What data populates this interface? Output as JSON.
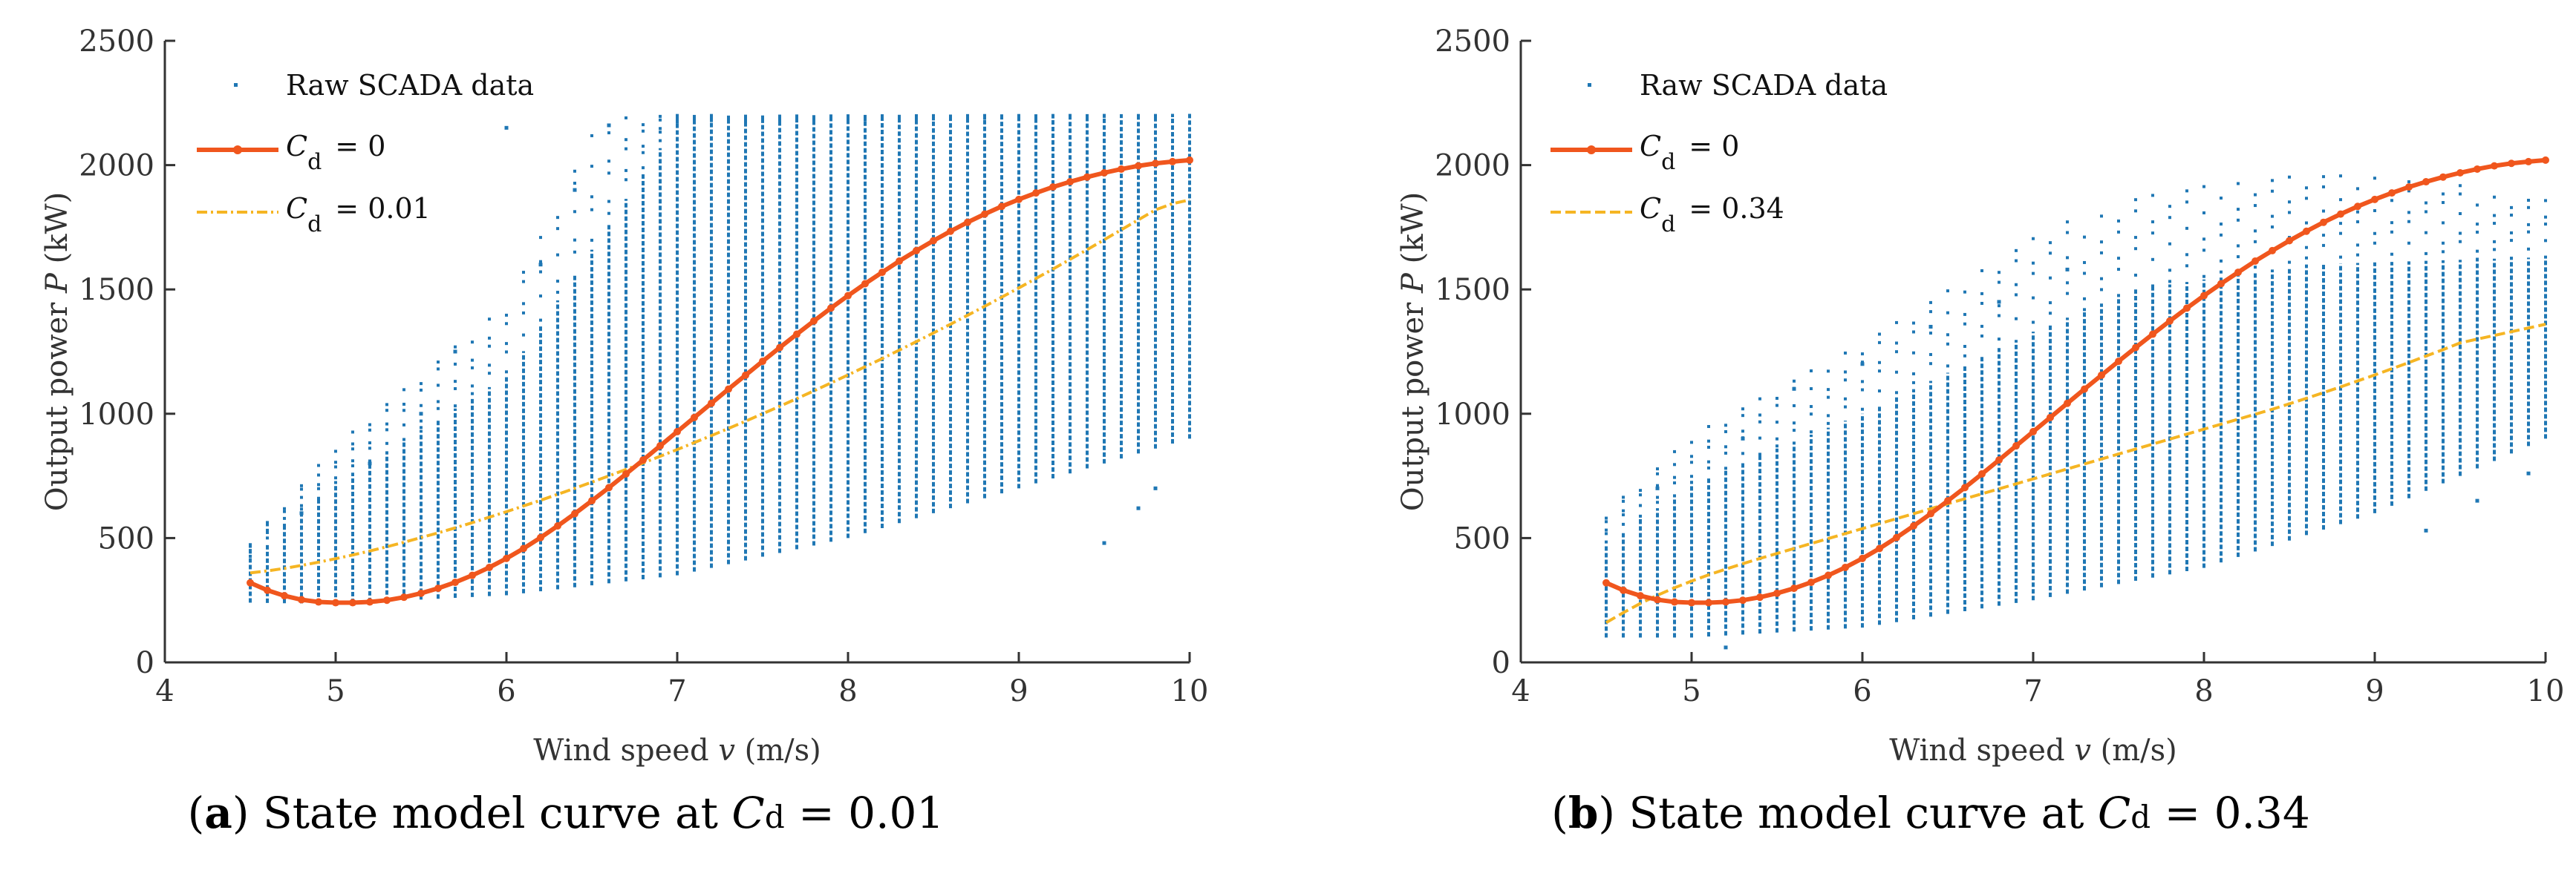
{
  "chart_data": [
    {
      "type": "scatter",
      "panel_label": "a",
      "caption_text": "State model curve at",
      "caption_symbol": "C",
      "caption_sub": "d",
      "caption_value": "= 0.01",
      "xlabel": "Wind speed",
      "xlabel_var": "v",
      "xlabel_unit": "(m/s)",
      "ylabel": "Output power",
      "ylabel_var": "P",
      "ylabel_unit": "(kW)",
      "xlim": [
        4,
        10
      ],
      "ylim": [
        0,
        2500
      ],
      "xticks": [
        "4",
        "5",
        "6",
        "7",
        "8",
        "9",
        "10"
      ],
      "yticks": [
        "0",
        "500",
        "1000",
        "1500",
        "2000",
        "2500"
      ],
      "grid": false,
      "legend_position": "top-left",
      "scatter": {
        "name": "Raw SCADA data",
        "color": "#1f77b4",
        "x_range": [
          4.5,
          10
        ],
        "x_step": 0.1,
        "lower": [
          [
            4.5,
            240
          ],
          [
            5.0,
            235
          ],
          [
            6.0,
            270
          ],
          [
            7.0,
            350
          ],
          [
            8.0,
            500
          ],
          [
            9.0,
            700
          ],
          [
            10.0,
            900
          ]
        ],
        "upper": [
          [
            4.5,
            420
          ],
          [
            5.0,
            720
          ],
          [
            6.0,
            1150
          ],
          [
            7.0,
            2170
          ],
          [
            10.0,
            2200
          ]
        ],
        "outliers": [
          [
            4.8,
            600
          ],
          [
            5.2,
            800
          ],
          [
            5.5,
            1000
          ],
          [
            5.7,
            1250
          ],
          [
            6.2,
            1600
          ],
          [
            6.4,
            1900
          ],
          [
            6.6,
            2160
          ],
          [
            6.0,
            2150
          ],
          [
            9.7,
            620
          ],
          [
            9.5,
            480
          ],
          [
            9.8,
            700
          ]
        ]
      },
      "series": [
        {
          "name": "C",
          "name_sub": "d",
          "name_value": "= 0",
          "color": "#f0561d",
          "style": "solid-dots",
          "x": [
            4.5,
            4.6,
            4.7,
            4.8,
            4.9,
            5.0,
            5.1,
            5.2,
            5.3,
            5.4,
            5.5,
            5.6,
            5.7,
            5.8,
            5.9,
            6.0,
            6.1,
            6.2,
            6.3,
            6.4,
            6.5,
            6.6,
            6.7,
            6.8,
            6.9,
            7.0,
            7.1,
            7.2,
            7.3,
            7.4,
            7.5,
            7.6,
            7.7,
            7.8,
            7.9,
            8.0,
            8.1,
            8.2,
            8.3,
            8.4,
            8.5,
            8.6,
            8.7,
            8.8,
            8.9,
            9.0,
            9.1,
            9.2,
            9.3,
            9.4,
            9.5,
            9.6,
            9.7,
            9.8,
            9.9,
            10.0
          ],
          "values": [
            320,
            290,
            268,
            252,
            243,
            240,
            240,
            243,
            250,
            262,
            278,
            298,
            322,
            350,
            382,
            418,
            458,
            502,
            549,
            598,
            650,
            703,
            758,
            814,
            871,
            928,
            985,
            1042,
            1099,
            1155,
            1211,
            1266,
            1320,
            1373,
            1425,
            1475,
            1523,
            1569,
            1614,
            1656,
            1696,
            1734,
            1770,
            1803,
            1834,
            1862,
            1888,
            1912,
            1933,
            1952,
            1969,
            1984,
            1997,
            2007,
            2014,
            2020
          ]
        },
        {
          "name": "C",
          "name_sub": "d",
          "name_value": "= 0.01",
          "color": "#f5b523",
          "style": "dash-dot",
          "x": [
            4.5,
            4.6,
            4.7,
            4.8,
            4.9,
            5.0,
            5.1,
            5.2,
            5.3,
            5.4,
            5.5,
            5.6,
            5.7,
            5.8,
            5.9,
            6.0,
            6.1,
            6.2,
            6.3,
            6.4,
            6.5,
            6.6,
            6.7,
            6.8,
            6.9,
            7.0,
            7.1,
            7.2,
            7.3,
            7.4,
            7.5,
            7.6,
            7.7,
            7.8,
            7.9,
            8.0,
            8.1,
            8.2,
            8.3,
            8.4,
            8.5,
            8.6,
            8.7,
            8.8,
            8.9,
            9.0,
            9.1,
            9.2,
            9.3,
            9.4,
            9.5,
            9.6,
            9.7,
            9.8,
            9.9,
            10.0
          ],
          "values": [
            360,
            368,
            378,
            390,
            403,
            417,
            432,
            448,
            465,
            483,
            502,
            521,
            541,
            562,
            584,
            606,
            629,
            652,
            676,
            700,
            725,
            750,
            776,
            802,
            829,
            856,
            884,
            912,
            941,
            970,
            1000,
            1030,
            1061,
            1092,
            1124,
            1156,
            1189,
            1222,
            1256,
            1290,
            1325,
            1360,
            1396,
            1432,
            1469,
            1506,
            1544,
            1582,
            1621,
            1660,
            1700,
            1740,
            1780,
            1820,
            1845,
            1860
          ]
        }
      ]
    },
    {
      "type": "scatter",
      "panel_label": "b",
      "caption_text": "State model curve at",
      "caption_symbol": "C",
      "caption_sub": "d",
      "caption_value": "= 0.34",
      "xlabel": "Wind speed",
      "xlabel_var": "v",
      "xlabel_unit": "(m/s)",
      "ylabel": "Output power",
      "ylabel_var": "P",
      "ylabel_unit": "(kW)",
      "xlim": [
        4,
        10
      ],
      "ylim": [
        0,
        2500
      ],
      "xticks": [
        "4",
        "5",
        "6",
        "7",
        "8",
        "9",
        "10"
      ],
      "yticks": [
        "0",
        "500",
        "1000",
        "1500",
        "2000",
        "2500"
      ],
      "grid": false,
      "legend_position": "top-left",
      "scatter": {
        "name": "Raw SCADA data",
        "color": "#1f77b4",
        "x_range": [
          4.5,
          10
        ],
        "x_step": 0.1,
        "lower": [
          [
            4.5,
            100
          ],
          [
            5.0,
            100
          ],
          [
            6.0,
            140
          ],
          [
            7.0,
            250
          ],
          [
            8.0,
            380
          ],
          [
            9.0,
            600
          ],
          [
            10.0,
            900
          ]
        ],
        "upper": [
          [
            4.5,
            470
          ],
          [
            5.0,
            720
          ],
          [
            6.0,
            1000
          ],
          [
            7.0,
            1330
          ],
          [
            7.6,
            1500
          ],
          [
            8.6,
            1600
          ],
          [
            10.0,
            1630
          ]
        ],
        "outliers": [
          [
            4.8,
            700
          ],
          [
            5.3,
            900
          ],
          [
            5.6,
            1100
          ],
          [
            6.0,
            1200
          ],
          [
            6.4,
            1350
          ],
          [
            6.8,
            1450
          ],
          [
            7.2,
            1580
          ],
          [
            5.2,
            60
          ],
          [
            9.3,
            530
          ],
          [
            9.6,
            650
          ],
          [
            9.9,
            760
          ]
        ]
      },
      "series": [
        {
          "name": "C",
          "name_sub": "d",
          "name_value": "= 0",
          "color": "#f0561d",
          "style": "solid-dots",
          "x": [
            4.5,
            4.6,
            4.7,
            4.8,
            4.9,
            5.0,
            5.1,
            5.2,
            5.3,
            5.4,
            5.5,
            5.6,
            5.7,
            5.8,
            5.9,
            6.0,
            6.1,
            6.2,
            6.3,
            6.4,
            6.5,
            6.6,
            6.7,
            6.8,
            6.9,
            7.0,
            7.1,
            7.2,
            7.3,
            7.4,
            7.5,
            7.6,
            7.7,
            7.8,
            7.9,
            8.0,
            8.1,
            8.2,
            8.3,
            8.4,
            8.5,
            8.6,
            8.7,
            8.8,
            8.9,
            9.0,
            9.1,
            9.2,
            9.3,
            9.4,
            9.5,
            9.6,
            9.7,
            9.8,
            9.9,
            10.0
          ],
          "values": [
            320,
            290,
            268,
            252,
            243,
            240,
            240,
            243,
            250,
            262,
            278,
            298,
            322,
            350,
            382,
            418,
            458,
            502,
            549,
            598,
            650,
            703,
            758,
            814,
            871,
            928,
            985,
            1042,
            1099,
            1155,
            1211,
            1266,
            1320,
            1373,
            1425,
            1475,
            1523,
            1569,
            1614,
            1656,
            1696,
            1734,
            1770,
            1803,
            1834,
            1862,
            1888,
            1912,
            1933,
            1952,
            1969,
            1984,
            1997,
            2007,
            2014,
            2020
          ]
        },
        {
          "name": "C",
          "name_sub": "d",
          "name_value": "= 0.34",
          "color": "#f5b523",
          "style": "dash",
          "x": [
            4.5,
            4.6,
            4.7,
            4.8,
            4.9,
            5.0,
            5.1,
            5.2,
            5.3,
            5.4,
            5.5,
            5.6,
            5.7,
            5.8,
            5.9,
            6.0,
            6.1,
            6.2,
            6.3,
            6.4,
            6.5,
            6.6,
            6.7,
            6.8,
            6.9,
            7.0,
            7.1,
            7.2,
            7.3,
            7.4,
            7.5,
            7.6,
            7.7,
            7.8,
            7.9,
            8.0,
            8.1,
            8.2,
            8.3,
            8.4,
            8.5,
            8.6,
            8.7,
            8.8,
            8.9,
            9.0,
            9.1,
            9.2,
            9.3,
            9.4,
            9.5,
            9.6,
            9.7,
            9.8,
            9.9,
            10.0
          ],
          "values": [
            160,
            200,
            237,
            270,
            300,
            327,
            352,
            375,
            397,
            418,
            438,
            458,
            478,
            498,
            518,
            538,
            558,
            578,
            598,
            618,
            638,
            658,
            678,
            698,
            718,
            738,
            758,
            778,
            798,
            818,
            838,
            858,
            878,
            898,
            918,
            938,
            958,
            978,
            998,
            1018,
            1040,
            1062,
            1085,
            1108,
            1132,
            1156,
            1181,
            1206,
            1232,
            1258,
            1285,
            1300,
            1315,
            1330,
            1345,
            1360
          ]
        }
      ]
    }
  ]
}
